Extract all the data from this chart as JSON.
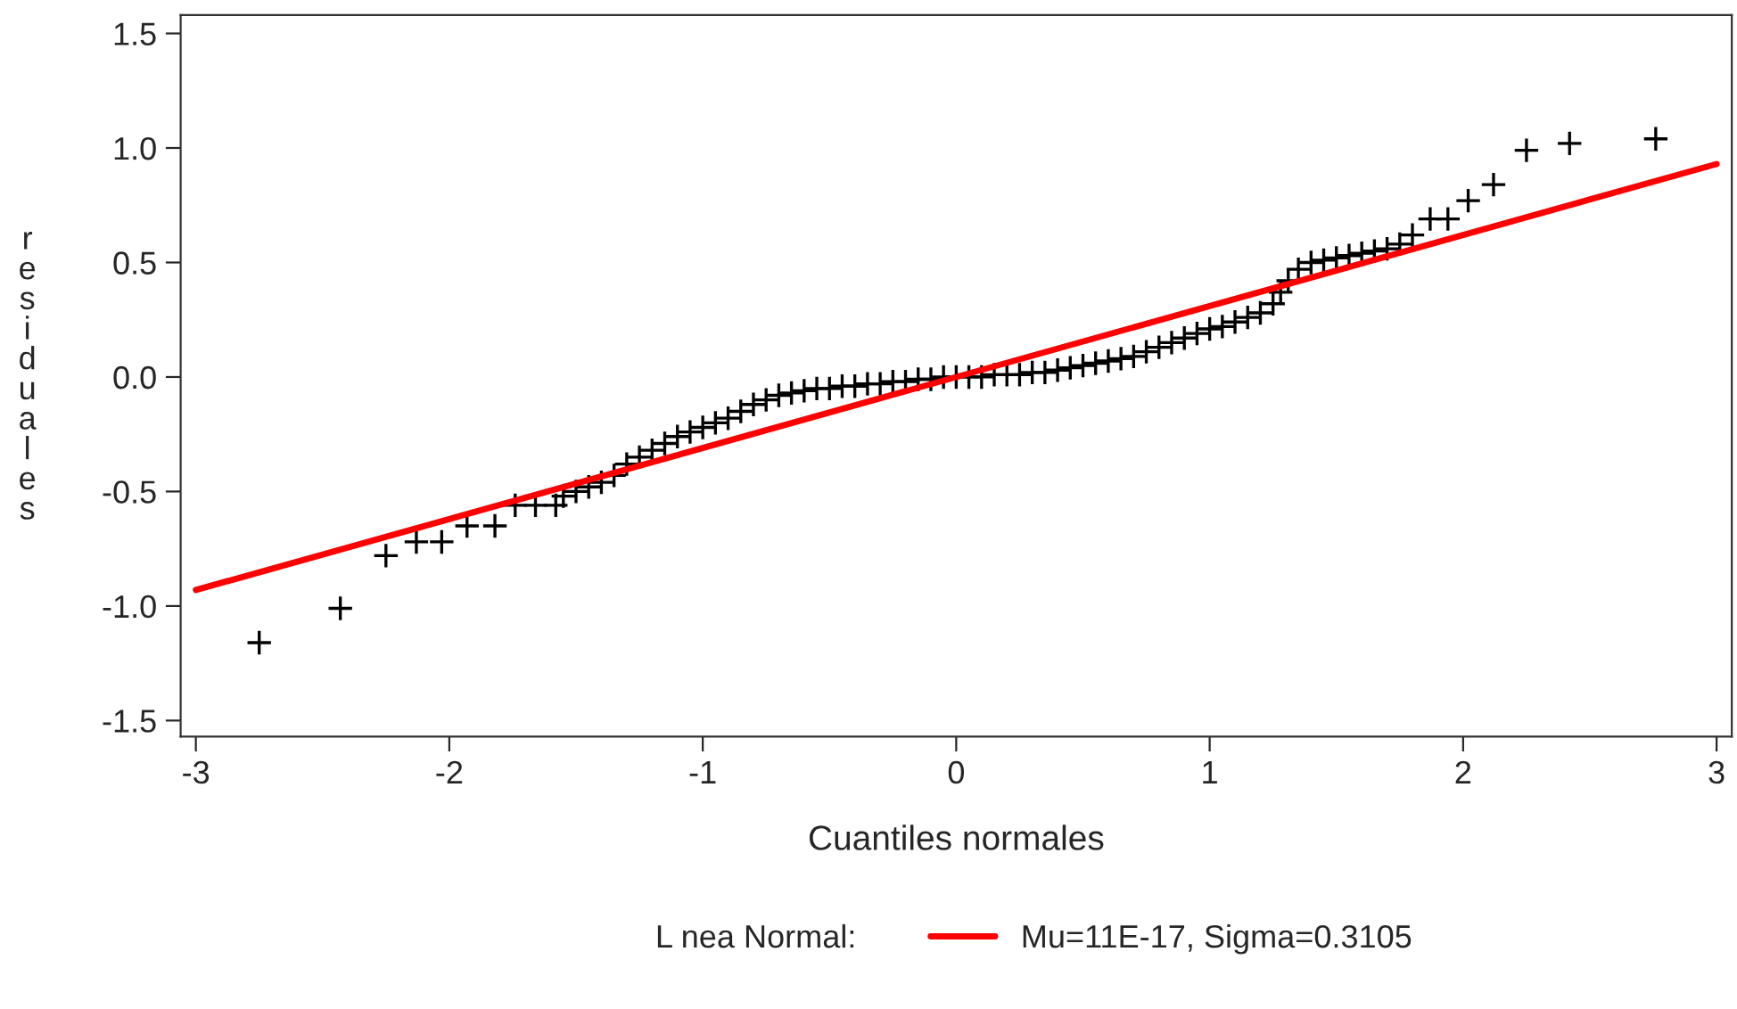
{
  "chart_data": {
    "type": "scatter",
    "xlabel": "Cuantiles normales",
    "ylabel": "residuales",
    "legend_title": "L nea Normal:",
    "legend": "bottom",
    "grid": false,
    "marker": "cross",
    "xlim": [
      -3.06,
      3.06
    ],
    "ylim": [
      -1.57,
      1.58
    ],
    "xticks": [
      -3,
      -2,
      -1,
      0,
      1,
      2,
      3
    ],
    "yticks": [
      {
        "value": -1.5,
        "label": "-1.5"
      },
      {
        "value": -1.0,
        "label": "-1.0"
      },
      {
        "value": -0.5,
        "label": "-0.5"
      },
      {
        "value": 0.0,
        "label": "0.0"
      },
      {
        "value": 0.5,
        "label": "0.5"
      },
      {
        "value": 1.0,
        "label": "1.0"
      },
      {
        "value": 1.5,
        "label": "1.5"
      }
    ],
    "series": [
      {
        "color": "#000000",
        "x": [
          -2.75,
          -2.43,
          -2.25,
          -2.13,
          -2.03,
          -1.93,
          -1.82,
          -1.74,
          -1.66,
          -1.58,
          -1.55,
          -1.5,
          -1.45,
          -1.4,
          -1.35,
          -1.3,
          -1.25,
          -1.2,
          -1.15,
          -1.1,
          -1.05,
          -1.0,
          -0.95,
          -0.9,
          -0.85,
          -0.8,
          -0.75,
          -0.7,
          -0.65,
          -0.6,
          -0.55,
          -0.5,
          -0.45,
          -0.4,
          -0.35,
          -0.3,
          -0.25,
          -0.2,
          -0.15,
          -0.1,
          -0.05,
          0.0,
          0.05,
          0.1,
          0.15,
          0.2,
          0.25,
          0.3,
          0.35,
          0.4,
          0.45,
          0.5,
          0.55,
          0.6,
          0.65,
          0.7,
          0.75,
          0.8,
          0.85,
          0.9,
          0.95,
          1.0,
          1.05,
          1.1,
          1.15,
          1.2,
          1.25,
          1.28,
          1.31,
          1.35,
          1.4,
          1.45,
          1.5,
          1.55,
          1.6,
          1.65,
          1.7,
          1.75,
          1.8,
          1.87,
          1.94,
          2.02,
          2.12,
          2.25,
          2.42,
          2.76
        ],
        "values": [
          -1.16,
          -1.01,
          -0.78,
          -0.72,
          -0.72,
          -0.65,
          -0.65,
          -0.56,
          -0.56,
          -0.56,
          -0.52,
          -0.5,
          -0.48,
          -0.46,
          -0.43,
          -0.38,
          -0.35,
          -0.32,
          -0.29,
          -0.26,
          -0.24,
          -0.22,
          -0.2,
          -0.18,
          -0.15,
          -0.12,
          -0.1,
          -0.08,
          -0.07,
          -0.06,
          -0.05,
          -0.05,
          -0.04,
          -0.04,
          -0.03,
          -0.03,
          -0.02,
          -0.02,
          -0.01,
          -0.01,
          0.0,
          0.0,
          0.0,
          0.0,
          0.01,
          0.01,
          0.01,
          0.02,
          0.02,
          0.03,
          0.04,
          0.05,
          0.06,
          0.07,
          0.08,
          0.09,
          0.11,
          0.13,
          0.15,
          0.17,
          0.19,
          0.21,
          0.22,
          0.24,
          0.26,
          0.28,
          0.32,
          0.37,
          0.42,
          0.47,
          0.5,
          0.51,
          0.52,
          0.53,
          0.54,
          0.55,
          0.56,
          0.58,
          0.62,
          0.69,
          0.69,
          0.77,
          0.84,
          0.99,
          1.02,
          1.04
        ]
      },
      {
        "type": "line",
        "name": "Mu=11E-17, Sigma=0.3105",
        "color": "#ff0000",
        "line_style": "solid",
        "marker": "none",
        "x": [
          -3,
          3
        ],
        "values": [
          -0.93,
          0.93
        ]
      }
    ]
  }
}
